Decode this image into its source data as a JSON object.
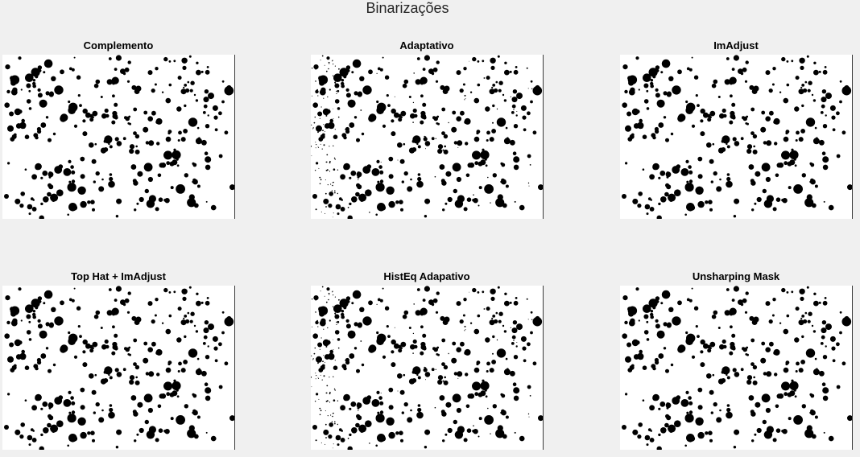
{
  "figure": {
    "title": "Binarizações"
  },
  "panels": [
    {
      "title": "Complemento",
      "image_description": "binary image of dark blobs on white background"
    },
    {
      "title": "Adaptativo",
      "image_description": "binary image of dark blobs on white background with noise"
    },
    {
      "title": "ImAdjust",
      "image_description": "binary image of dark blobs on white background"
    },
    {
      "title": "Top Hat + ImAdjust",
      "image_description": "binary image of dark blobs on white background"
    },
    {
      "title": "HistEq Adapativo",
      "image_description": "binary image of dark blobs on white background with noise"
    },
    {
      "title": "Unsharping Mask",
      "image_description": "binary image of dark blobs on white background"
    }
  ]
}
